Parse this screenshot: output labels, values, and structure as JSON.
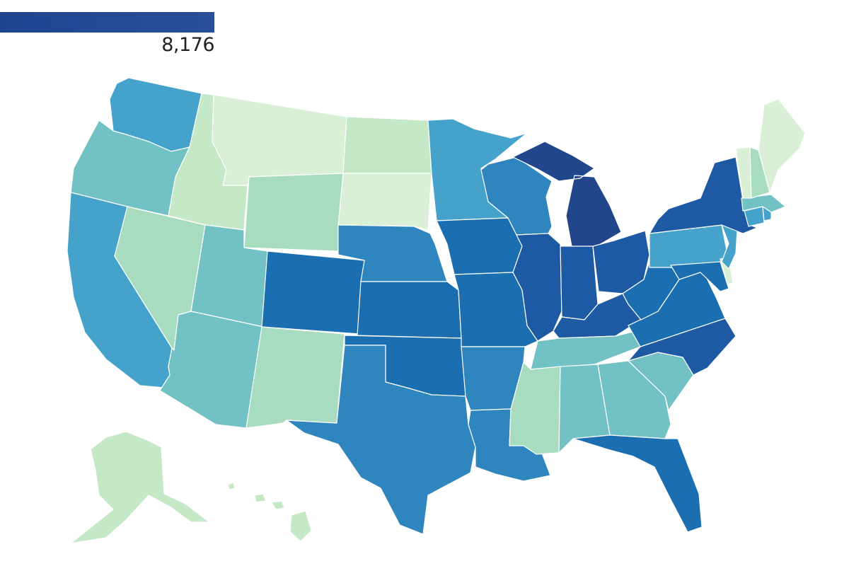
{
  "legend": {
    "max_label": "8,176",
    "max_value": 8176,
    "bar_color": "#1f4590"
  },
  "palette": {
    "c1": "#d9f0d6",
    "c2": "#c5e8c6",
    "c3": "#a8dcc0",
    "c4": "#72c2c5",
    "c5": "#45a3cb",
    "c6": "#2f86bf",
    "c7": "#1b6fb0",
    "c8": "#1d5aa3",
    "c9": "#21468c"
  },
  "states": {
    "WA": "c5",
    "OR": "c4",
    "CA": "c5",
    "NV": "c3",
    "ID": "c2",
    "MT": "c1",
    "WY": "c3",
    "UT": "c4",
    "AZ": "c4",
    "CO": "c7",
    "NM": "c3",
    "ND": "c2",
    "SD": "c1",
    "NE": "c6",
    "KS": "c7",
    "OK": "c7",
    "TX": "c6",
    "MN": "c5",
    "IA": "c7",
    "MO": "c7",
    "AR": "c6",
    "LA": "c6",
    "WI": "c6",
    "IL": "c8",
    "MI": "c9",
    "IN": "c8",
    "OH": "c8",
    "KY": "c8",
    "TN": "c4",
    "MS": "c3",
    "AL": "c4",
    "GA": "c4",
    "FL": "c7",
    "SC": "c4",
    "NC": "c8",
    "VA": "c7",
    "WV": "c7",
    "PA": "c5",
    "NY": "c8",
    "MD": "c7",
    "DE": "c1",
    "NJ": "c5",
    "CT": "c5",
    "RI": "c5",
    "MA": "c4",
    "VT": "c1",
    "NH": "c3",
    "ME": "c1",
    "AK": "c2",
    "HI": "c2"
  }
}
